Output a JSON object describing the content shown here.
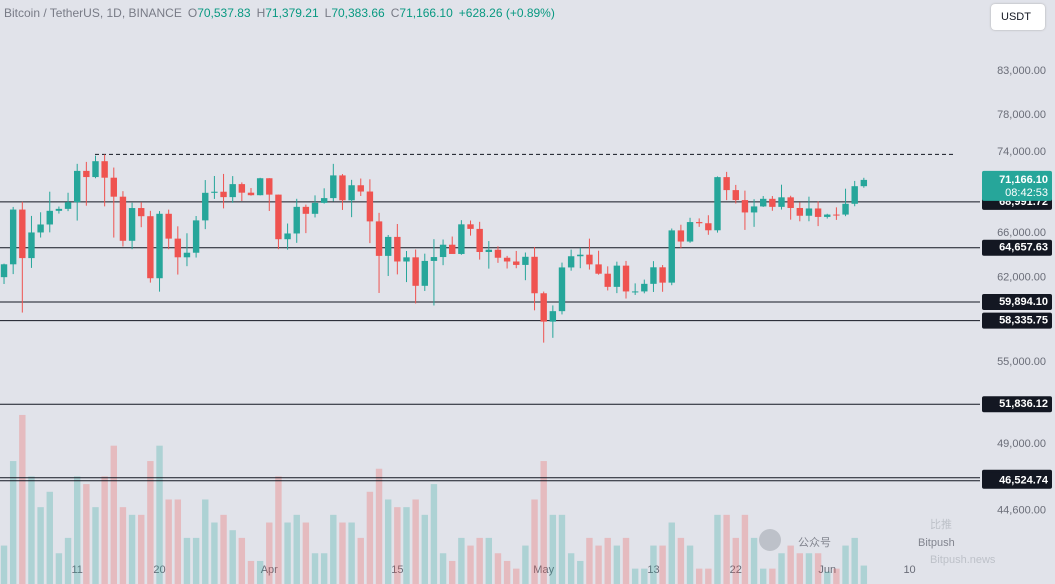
{
  "chart_data": {
    "type": "candlestick",
    "title": "Bitcoin / TetherUS, 1D, BINANCE",
    "ohlc_legend": [
      {
        "key": "O",
        "value": "70,537.83"
      },
      {
        "key": "H",
        "value": "71,379.21"
      },
      {
        "key": "L",
        "value": "70,383.66"
      },
      {
        "key": "C",
        "value": "71,166.10"
      }
    ],
    "change": "+628.26 (+0.89%)",
    "currency": "USDT",
    "log_scale": true,
    "grid": false,
    "up_color": "#26a69a",
    "down_color": "#ef5350",
    "x": [
      0,
      1,
      2,
      3,
      4,
      5,
      6,
      7,
      8,
      9,
      10,
      11,
      12,
      13,
      14,
      15,
      16,
      17,
      18,
      19,
      20,
      21,
      22,
      23,
      24,
      25,
      26,
      27,
      28,
      29,
      30,
      31,
      32,
      33,
      34,
      35,
      36,
      37,
      38,
      39,
      40,
      41,
      42,
      43,
      44,
      45,
      46,
      47,
      48,
      49,
      50,
      51,
      52,
      53,
      54,
      55,
      56,
      57,
      58,
      59,
      60,
      61,
      62,
      63,
      64,
      65,
      66,
      67,
      68,
      69,
      70,
      71,
      72,
      73,
      74,
      75,
      76,
      77,
      78,
      79,
      80,
      81,
      82,
      83,
      84,
      85,
      86,
      87,
      88,
      89,
      90,
      91,
      92,
      93,
      94
    ],
    "open": [
      62031,
      63168,
      68245,
      63724,
      66074,
      66823,
      68124,
      68313,
      68955,
      72078,
      71452,
      73072,
      71388,
      69499,
      65300,
      68393,
      67609,
      61937,
      67840,
      65501,
      63796,
      64209,
      67211,
      69880,
      69988,
      69456,
      70744,
      69893,
      69645,
      71333,
      69702,
      65446,
      65980,
      68508,
      67837,
      68896,
      69360,
      71620,
      69146,
      70631,
      70006,
      67116,
      63924,
      65661,
      63419,
      63793,
      61277,
      63470,
      63818,
      64941,
      64097,
      66837,
      66407,
      64276,
      64481,
      63755,
      63419,
      63113,
      63841,
      60636,
      58254,
      59123,
      62889,
      63891,
      64031,
      63161,
      62334,
      61187,
      63049,
      60792,
      60793,
      61448,
      62901,
      61552,
      66267,
      65231,
      67051,
      66940,
      66278,
      71446,
      70148,
      69166,
      67969,
      68549,
      69290,
      68507,
      69436,
      68398,
      67652,
      68352,
      67540,
      67766,
      67765,
      68805,
      70537.83
    ],
    "high": [
      63230,
      68500,
      69000,
      67637,
      67985,
      69990,
      68541,
      69887,
      72800,
      73000,
      73650,
      73777,
      72419,
      70043,
      68904,
      68956,
      68124,
      68100,
      68240,
      66650,
      65999,
      67628,
      71150,
      71561,
      71769,
      71552,
      70913,
      70355,
      71377,
      71342,
      69708,
      66914,
      69291,
      68725,
      69629,
      70326,
      72797,
      71758,
      71172,
      71305,
      71227,
      67932,
      65840,
      66867,
      64365,
      64499,
      64125,
      65450,
      65419,
      65695,
      67232,
      67199,
      67075,
      65275,
      64792,
      63923,
      64370,
      64228,
      64734,
      60781,
      59602,
      63320,
      64494,
      64646,
      65500,
      64390,
      62986,
      63404,
      63469,
      61490,
      61818,
      63450,
      63102,
      66444,
      66799,
      67459,
      67400,
      67700,
      71515,
      71979,
      70666,
      70096,
      69250,
      69562,
      69562,
      70687,
      69591,
      68935,
      69500,
      69044,
      67841,
      68460,
      70288,
      71063,
      71379.21
    ],
    "low": [
      61435,
      62300,
      59005,
      62848,
      65602,
      66082,
      67861,
      68094,
      67194,
      68620,
      71333,
      68555,
      65600,
      64780,
      64533,
      66566,
      61555,
      60775,
      64529,
      62260,
      63000,
      63772,
      66385,
      69280,
      68359,
      68903,
      69076,
      69601,
      69624,
      68110,
      64533,
      64493,
      65113,
      66011,
      67491,
      68824,
      69043,
      68210,
      67518,
      69567,
      65086,
      60660,
      62134,
      62274,
      61600,
      59768,
      60833,
      59600,
      63090,
      64237,
      64023,
      65780,
      63589,
      62783,
      63298,
      62793,
      62817,
      61765,
      59191,
      56552,
      56937,
      58849,
      62599,
      62822,
      62700,
      62250,
      60877,
      60648,
      60187,
      60492,
      60632,
      60749,
      60763,
      61330,
      64613,
      65119,
      66600,
      65857,
      66060,
      69162,
      68835,
      66312,
      66600,
      68500,
      68128,
      68250,
      67278,
      67124,
      67128,
      66670,
      67386,
      67257,
      67612,
      68567,
      70383.66
    ],
    "close": [
      63168,
      68245,
      63724,
      66074,
      66823,
      68124,
      68313,
      68955,
      72078,
      71452,
      73072,
      71388,
      69499,
      65300,
      68393,
      67609,
      61937,
      67840,
      65501,
      63796,
      64209,
      67211,
      69880,
      69988,
      69456,
      70744,
      69893,
      69645,
      71333,
      69702,
      65446,
      65980,
      68508,
      67837,
      68896,
      69360,
      71620,
      69146,
      70631,
      70006,
      67116,
      63924,
      65661,
      63419,
      63793,
      61277,
      63470,
      63818,
      64941,
      64097,
      66837,
      66407,
      64276,
      64481,
      63755,
      63419,
      63113,
      63841,
      60636,
      58254,
      59123,
      62889,
      63891,
      64031,
      63161,
      62334,
      61187,
      63049,
      60792,
      60793,
      61448,
      62901,
      61552,
      66267,
      65231,
      67051,
      66940,
      66278,
      71446,
      70148,
      69166,
      67969,
      68549,
      69290,
      68507,
      69436,
      68398,
      67652,
      68352,
      67540,
      67766,
      67765,
      68805,
      70537,
      71166.1
    ],
    "volume": [
      25,
      80,
      110,
      70,
      50,
      60,
      20,
      30,
      70,
      65,
      50,
      70,
      90,
      50,
      45,
      45,
      80,
      90,
      55,
      55,
      30,
      30,
      55,
      40,
      45,
      35,
      30,
      15,
      15,
      40,
      70,
      40,
      45,
      40,
      20,
      20,
      45,
      40,
      40,
      30,
      60,
      75,
      55,
      50,
      50,
      55,
      45,
      65,
      20,
      15,
      30,
      25,
      30,
      30,
      20,
      15,
      10,
      25,
      55,
      80,
      45,
      45,
      20,
      15,
      30,
      25,
      30,
      25,
      30,
      10,
      10,
      25,
      25,
      40,
      30,
      25,
      10,
      10,
      45,
      45,
      30,
      45,
      30,
      10,
      10,
      20,
      25,
      20,
      20,
      20,
      8,
      10,
      25,
      30,
      12
    ],
    "volume_lim": [
      0,
      380
    ],
    "xlim": [
      -0.44,
      106.7
    ],
    "xticks": [
      {
        "value": 8,
        "label": "11"
      },
      {
        "value": 17,
        "label": "20"
      },
      {
        "value": 29,
        "label": "Apr"
      },
      {
        "value": 43,
        "label": "15"
      },
      {
        "value": 59,
        "label": "May"
      },
      {
        "value": 71,
        "label": "13"
      },
      {
        "value": 80,
        "label": "22"
      },
      {
        "value": 90,
        "label": "Jun"
      },
      {
        "value": 99,
        "label": "10"
      }
    ],
    "ylim": [
      40213,
      91757
    ],
    "yticks": [
      {
        "value": 83000,
        "label": "83,000.00"
      },
      {
        "value": 78000,
        "label": "78,000.00"
      },
      {
        "value": 74000,
        "label": "74,000.00"
      },
      {
        "value": 66000,
        "label": "66,000.00"
      },
      {
        "value": 62000,
        "label": "62,000.00"
      },
      {
        "value": 55000,
        "label": "55,000.00"
      },
      {
        "value": 49000,
        "label": "49,000.00"
      },
      {
        "value": 44600,
        "label": "44,600.00"
      }
    ],
    "levels": [
      {
        "value": 68991.72,
        "label": "68,991.72"
      },
      {
        "value": 64657.63,
        "label": "64,657.63"
      },
      {
        "value": 59894.1,
        "label": "59,894.10"
      },
      {
        "value": 58335.75,
        "label": "58,335.75"
      },
      {
        "value": 51836.12,
        "label": "51,836.12"
      },
      {
        "value": 46721.74,
        "label": "46,721.74"
      },
      {
        "value": 46524.74,
        "label": "46,524.74"
      }
    ],
    "dashed_level": 73777,
    "last_price": {
      "value": 71166.1,
      "label": "71,166.10",
      "countdown": "08:42:53"
    }
  },
  "watermark": {
    "account": "公众号",
    "brand": "Bitpush",
    "logo_text": "比推",
    "site": "Bitpush.news"
  }
}
